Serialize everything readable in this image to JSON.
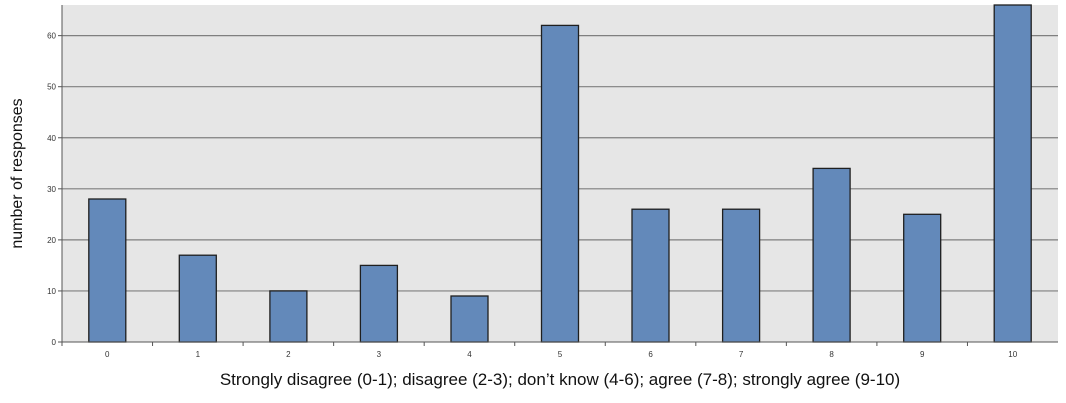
{
  "chart_data": {
    "type": "bar",
    "title": "",
    "xlabel": "Strongly disagree (0-1); disagree (2-3); don’t know (4-6); agree (7-8); strongly agree (9-10)",
    "ylabel": "number of responses",
    "categories": [
      "0",
      "1",
      "2",
      "3",
      "4",
      "5",
      "6",
      "7",
      "8",
      "9",
      "10"
    ],
    "values": [
      28,
      17,
      10,
      15,
      9,
      62,
      26,
      26,
      34,
      25,
      66
    ],
    "ylim": [
      0,
      66
    ],
    "yticks": [
      "0",
      "10",
      "20",
      "30",
      "40",
      "50",
      "60"
    ],
    "grid": true,
    "colors": {
      "bar": "#6389ba",
      "bar_stroke": "#1f1f1f",
      "plot_bg": "#e6e6e6",
      "grid": "#7f7f7f"
    }
  }
}
